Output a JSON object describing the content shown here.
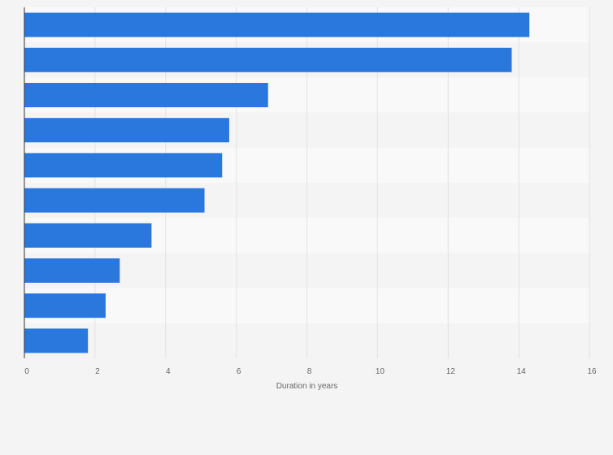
{
  "chart_data": {
    "type": "bar",
    "orientation": "horizontal",
    "categories": [
      "",
      "",
      "",
      "",
      "",
      "",
      "",
      "",
      "",
      ""
    ],
    "values": [
      14.3,
      13.8,
      6.9,
      5.8,
      5.6,
      5.1,
      3.6,
      2.7,
      2.3,
      1.8
    ],
    "title": "",
    "xlabel": "Duration in years",
    "ylabel": "",
    "xlim": [
      0,
      16
    ],
    "xticks": [
      0,
      2,
      4,
      6,
      8,
      10,
      12,
      14,
      16
    ],
    "tick_labels": [
      "0",
      "2",
      "4",
      "6",
      "8",
      "10",
      "12",
      "14",
      "16"
    ],
    "grid": true,
    "colors": {
      "bar": "#2a78de",
      "band_light": "#f9f9f9",
      "band_dark": "#f4f4f4",
      "grid": "#e2e2e2",
      "axis": "#333333",
      "text": "#666666",
      "background": "#f4f4f4"
    }
  }
}
